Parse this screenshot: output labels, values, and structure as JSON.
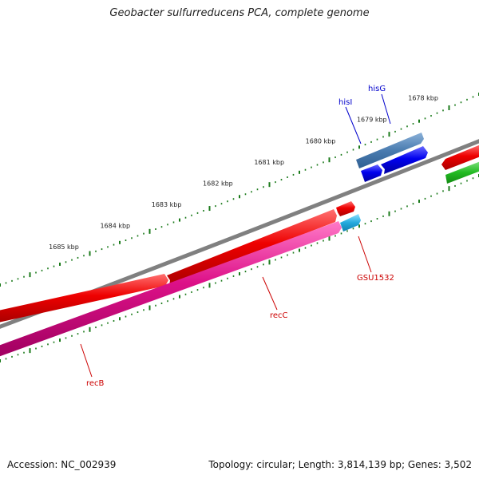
{
  "title": "Geobacter sulfurreducens PCA, complete genome",
  "footer": {
    "accession": "Accession: NC_002939",
    "summary": "Topology: circular; Length: 3,814,139 bp; Genes: 3,502"
  },
  "scale": {
    "unit": "kbp",
    "ticks": [
      {
        "pos_kbp": 1678,
        "label": "1678 kbp"
      },
      {
        "pos_kbp": 1679,
        "label": "1679 kbp"
      },
      {
        "pos_kbp": 1680,
        "label": "1680 kbp"
      },
      {
        "pos_kbp": 1681,
        "label": "1681 kbp"
      },
      {
        "pos_kbp": 1682,
        "label": "1682 kbp"
      },
      {
        "pos_kbp": 1683,
        "label": "1683 kbp"
      },
      {
        "pos_kbp": 1684,
        "label": "1684 kbp"
      },
      {
        "pos_kbp": 1685,
        "label": "1685 kbp"
      }
    ]
  },
  "genes": [
    {
      "label": "hisG",
      "label_color": "#0000cc",
      "color": "#0000ee",
      "outer_color": "#4a7cb0"
    },
    {
      "label": "hisI",
      "label_color": "#0000cc",
      "color": "#0000ee"
    },
    {
      "label": "GSU1532",
      "label_color": "#cc0000",
      "color": "#22aadd"
    },
    {
      "label": "recC",
      "label_color": "#cc0000",
      "color": "#ee0000"
    },
    {
      "label": "recB",
      "label_color": "#cc0000",
      "color": "#dd1188"
    }
  ],
  "colors": {
    "backbone": "#808080",
    "ticks": "#1a7a1a",
    "forward_strand": "#ee0000",
    "other_strand_gene": "#22bb22"
  }
}
